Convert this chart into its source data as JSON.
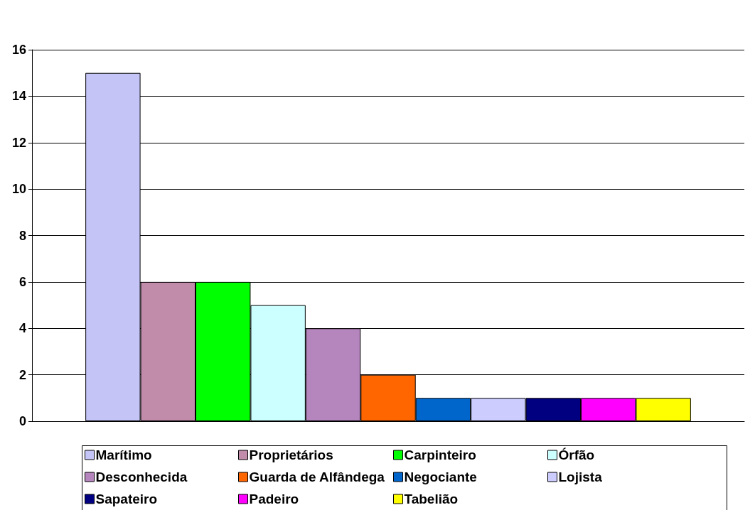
{
  "chart_data": {
    "type": "bar",
    "categories": [
      null
    ],
    "series": [
      {
        "name": "Marítimo",
        "color": "#c4c4f6",
        "values": [
          15
        ]
      },
      {
        "name": "Proprietários",
        "color": "#c08caa",
        "values": [
          6
        ]
      },
      {
        "name": "Carpinteiro",
        "color": "#00ff00",
        "values": [
          6
        ]
      },
      {
        "name": "Órfão",
        "color": "#ccffff",
        "values": [
          5
        ]
      },
      {
        "name": "Desconhecida",
        "color": "#b585bd",
        "values": [
          4
        ]
      },
      {
        "name": "Guarda de Alfândega",
        "color": "#ff6600",
        "values": [
          2
        ]
      },
      {
        "name": "Negociante",
        "color": "#0066cc",
        "values": [
          1
        ]
      },
      {
        "name": "Lojista",
        "color": "#ccccff",
        "values": [
          1
        ]
      },
      {
        "name": "Sapateiro",
        "color": "#000080",
        "values": [
          1
        ]
      },
      {
        "name": "Padeiro",
        "color": "#ff00ff",
        "values": [
          1
        ]
      },
      {
        "name": "Tabelião",
        "color": "#ffff00",
        "values": [
          1
        ]
      }
    ],
    "ylim": [
      0,
      16
    ],
    "yticks": [
      0,
      2,
      4,
      6,
      8,
      10,
      12,
      14,
      16
    ],
    "grid": "y",
    "legend": "bottom"
  }
}
